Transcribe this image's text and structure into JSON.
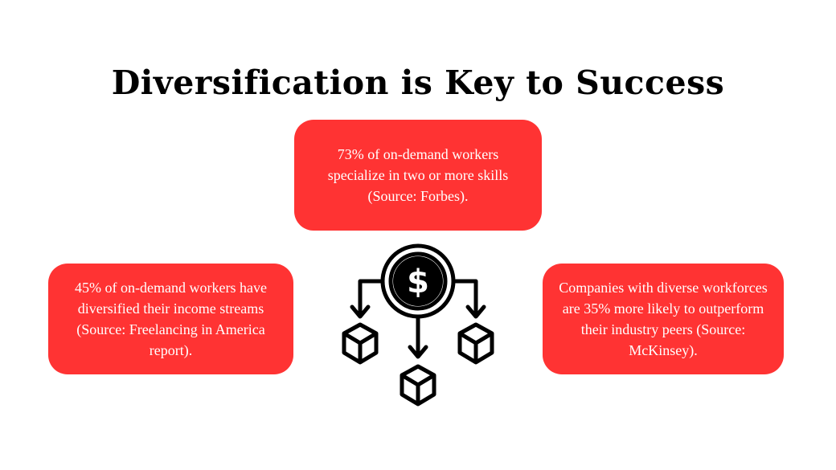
{
  "title": "Diversification is Key to Success",
  "cards": {
    "top": "73% of on-demand workers specialize in two or more skills (Source: Forbes).",
    "left": "45% of on-demand workers have diversified their income streams (Source: Freelancing in America report).",
    "right": "Companies with diverse workforces are 35% more likely to outperform their industry peers (Source: McKinsey)."
  },
  "icon": {
    "name": "diversification-icon",
    "center_symbol": "$"
  },
  "colors": {
    "card_fill": "#ff3333",
    "card_text": "#ffffff",
    "title_text": "#000000",
    "icon": "#000000"
  }
}
